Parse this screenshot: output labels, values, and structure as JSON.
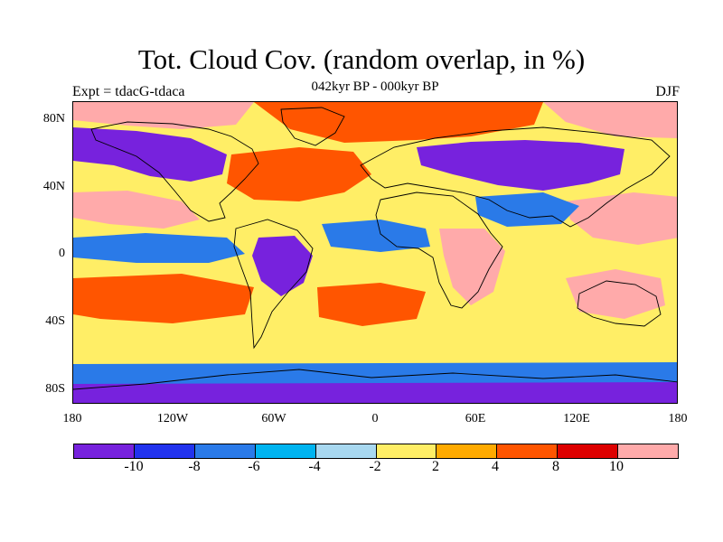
{
  "title": "Tot. Cloud Cov. (random overlap, in %)",
  "subtitle": "042kyr BP - 000kyr BP",
  "left_label": "Expt = tdacG-tdaca",
  "right_label": "DJF",
  "axes": {
    "y_ticks": [
      "80N",
      "40N",
      "0",
      "40S",
      "80S"
    ],
    "x_ticks": [
      "180",
      "120W",
      "60W",
      "0",
      "60E",
      "120E",
      "180"
    ]
  },
  "colorbar": {
    "colors": [
      "#7722dd",
      "#2233ee",
      "#2a7ae8",
      "#00b4f0",
      "#a8d8f0",
      "#ffee66",
      "#ffaa00",
      "#ff5500",
      "#dd0000",
      "#ffaaaa"
    ],
    "labels": [
      "-10",
      "-8",
      "-6",
      "-4",
      "-2",
      "2",
      "4",
      "8",
      "10"
    ]
  },
  "map": {
    "background_color": "#ffee66",
    "regions": [
      {
        "name": "arctic-north-pacific-pink",
        "color": "#ffaaaa"
      },
      {
        "name": "arctic-north-atlantic-red",
        "color": "#ff5500"
      },
      {
        "name": "north-america-purple",
        "color": "#7722dd"
      },
      {
        "name": "eurasia-north-purple",
        "color": "#7722dd"
      },
      {
        "name": "north-atlantic-red",
        "color": "#ff5500"
      },
      {
        "name": "north-pacific-pink",
        "color": "#ffaaaa"
      },
      {
        "name": "west-pacific-pink",
        "color": "#ffaaaa"
      },
      {
        "name": "tropical-pacific-blue",
        "color": "#2a7ae8"
      },
      {
        "name": "equatorial-atlantic-blue",
        "color": "#2a7ae8"
      },
      {
        "name": "indian-ocean-blue",
        "color": "#2a7ae8"
      },
      {
        "name": "south-america-purple",
        "color": "#7722dd"
      },
      {
        "name": "africa-pink",
        "color": "#ffaaaa"
      },
      {
        "name": "australia-pink",
        "color": "#ffaaaa"
      },
      {
        "name": "south-pacific-red",
        "color": "#ff5500"
      },
      {
        "name": "south-atlantic-red",
        "color": "#ff5500"
      },
      {
        "name": "southern-ocean-blue",
        "color": "#2a7ae8"
      },
      {
        "name": "antarctica-purple",
        "color": "#7722dd"
      }
    ],
    "land_outlines": [
      {
        "name": "north-america"
      },
      {
        "name": "greenland"
      },
      {
        "name": "south-america"
      },
      {
        "name": "eurasia"
      },
      {
        "name": "africa"
      },
      {
        "name": "australia"
      },
      {
        "name": "antarctica"
      }
    ]
  }
}
